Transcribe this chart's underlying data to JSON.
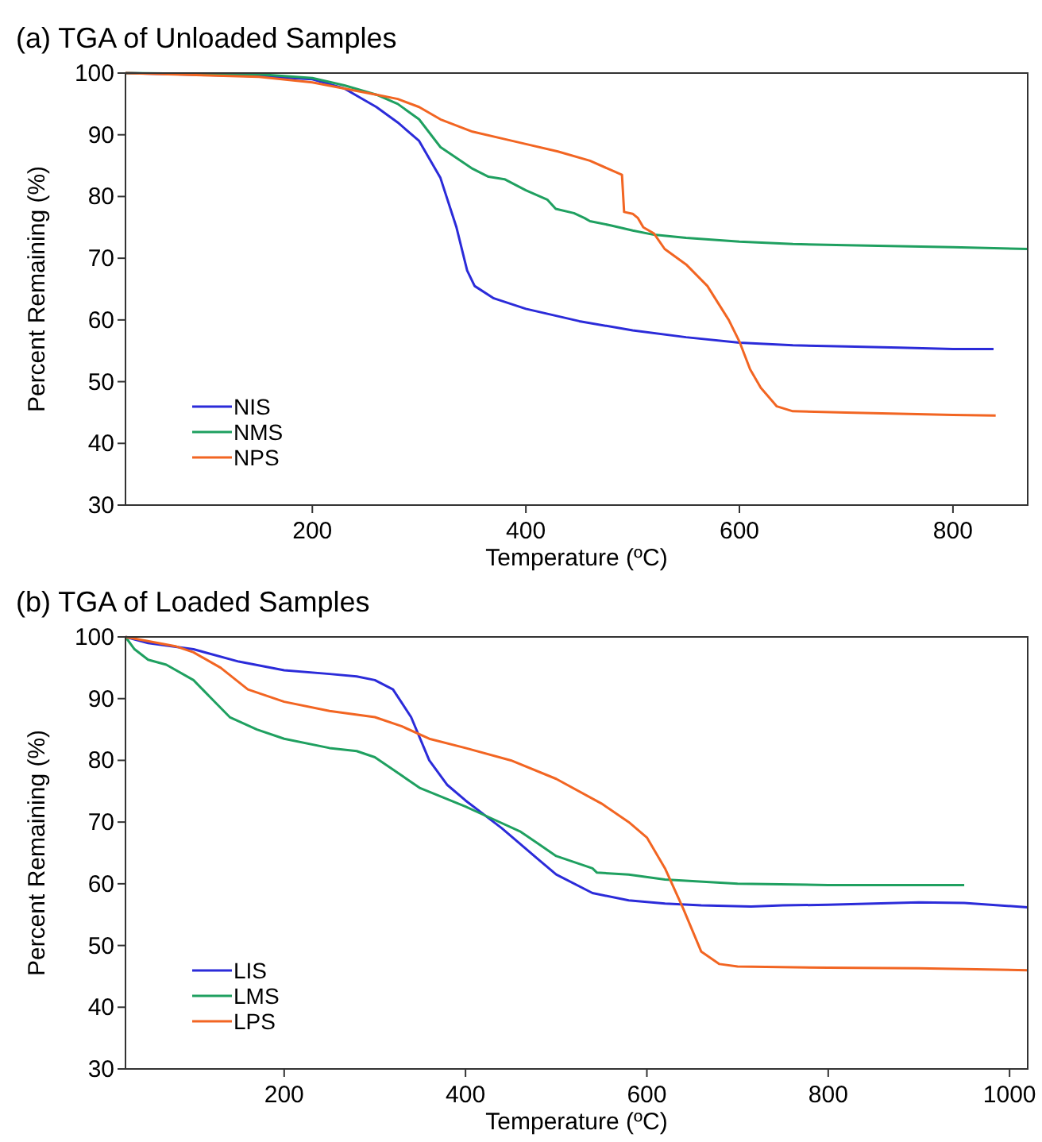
{
  "chart_data": [
    {
      "type": "line",
      "title": "(a) TGA of Unloaded Samples",
      "xlabel": "Temperature (ºC)",
      "ylabel": "Percent Remaining (%)",
      "xlim": [
        25,
        870
      ],
      "ylim": [
        30,
        100
      ],
      "xticks": [
        200,
        400,
        600,
        800
      ],
      "yticks": [
        30,
        40,
        50,
        60,
        70,
        80,
        90,
        100
      ],
      "grid": false,
      "legend": "bottom left",
      "series": [
        {
          "name": "NIS",
          "color": "#2b2bd9",
          "x": [
            25,
            150,
            200,
            230,
            260,
            280,
            300,
            320,
            335,
            345,
            352,
            370,
            400,
            450,
            500,
            550,
            600,
            650,
            700,
            750,
            800,
            838
          ],
          "values": [
            100,
            99.5,
            99,
            97.5,
            94.5,
            92,
            89,
            83,
            75,
            68,
            65.5,
            63.5,
            61.8,
            59.8,
            58.3,
            57.2,
            56.3,
            55.9,
            55.7,
            55.5,
            55.3,
            55.3
          ]
        },
        {
          "name": "NMS",
          "color": "#1fa060",
          "x": [
            25,
            150,
            200,
            230,
            260,
            280,
            300,
            320,
            350,
            365,
            380,
            400,
            420,
            428,
            445,
            455,
            460,
            480,
            500,
            520,
            550,
            600,
            650,
            700,
            800,
            870
          ],
          "values": [
            100,
            99.8,
            99.2,
            98,
            96.5,
            95,
            92.5,
            88,
            84.5,
            83.2,
            82.8,
            81,
            79.5,
            78,
            77.3,
            76.5,
            76,
            75.3,
            74.5,
            73.8,
            73.3,
            72.7,
            72.3,
            72.1,
            71.8,
            71.5
          ]
        },
        {
          "name": "NPS",
          "color": "#f26522",
          "x": [
            25,
            150,
            200,
            230,
            260,
            280,
            300,
            320,
            350,
            380,
            400,
            430,
            460,
            490,
            492,
            500,
            505,
            510,
            520,
            530,
            550,
            570,
            590,
            600,
            610,
            620,
            635,
            650,
            700,
            800,
            840
          ],
          "values": [
            100,
            99.4,
            98.5,
            97.5,
            96.5,
            95.8,
            94.5,
            92.5,
            90.5,
            89.3,
            88.5,
            87.3,
            85.8,
            83.5,
            77.5,
            77.2,
            76.5,
            75,
            74,
            71.5,
            69,
            65.5,
            60,
            56.5,
            52,
            49,
            46,
            45.2,
            45,
            44.6,
            44.5
          ]
        }
      ]
    },
    {
      "type": "line",
      "title": "(b) TGA of Loaded Samples",
      "xlabel": "Temperature (ºC)",
      "ylabel": "Percent Remaining (%)",
      "xlim": [
        25,
        1020
      ],
      "ylim": [
        30,
        100
      ],
      "xticks": [
        200,
        400,
        600,
        800,
        1000
      ],
      "yticks": [
        30,
        40,
        50,
        60,
        70,
        80,
        90,
        100
      ],
      "grid": false,
      "legend": "bottom left",
      "series": [
        {
          "name": "LIS",
          "color": "#2b2bd9",
          "x": [
            25,
            50,
            100,
            150,
            200,
            250,
            280,
            300,
            320,
            340,
            360,
            380,
            400,
            440,
            480,
            500,
            540,
            580,
            620,
            660,
            715,
            750,
            800,
            900,
            950,
            1020
          ],
          "values": [
            100,
            99,
            98,
            96,
            94.6,
            94,
            93.6,
            93,
            91.5,
            87,
            80,
            76,
            73.5,
            69,
            64,
            61.5,
            58.5,
            57.3,
            56.8,
            56.5,
            56.3,
            56.5,
            56.6,
            57,
            56.9,
            56.2
          ]
        },
        {
          "name": "LMS",
          "color": "#1fa060",
          "x": [
            25,
            35,
            50,
            70,
            100,
            120,
            140,
            170,
            200,
            250,
            280,
            300,
            320,
            350,
            400,
            430,
            460,
            480,
            500,
            540,
            545,
            580,
            620,
            700,
            800,
            950
          ],
          "values": [
            100,
            98,
            96.3,
            95.5,
            93,
            90,
            87,
            85,
            83.5,
            82,
            81.5,
            80.5,
            78.5,
            75.5,
            72.5,
            70.5,
            68.5,
            66.5,
            64.5,
            62.5,
            61.8,
            61.5,
            60.7,
            60,
            59.8,
            59.8
          ]
        },
        {
          "name": "LPS",
          "color": "#f26522",
          "x": [
            25,
            80,
            100,
            130,
            160,
            200,
            250,
            300,
            330,
            360,
            400,
            450,
            500,
            550,
            580,
            600,
            620,
            640,
            660,
            680,
            700,
            800,
            900,
            1020
          ],
          "values": [
            100,
            98.5,
            97.5,
            95,
            91.5,
            89.5,
            88,
            87,
            85.5,
            83.5,
            82,
            80,
            77,
            73,
            70,
            67.5,
            62.5,
            56,
            49,
            47,
            46.6,
            46.4,
            46.3,
            46
          ]
        }
      ]
    }
  ]
}
